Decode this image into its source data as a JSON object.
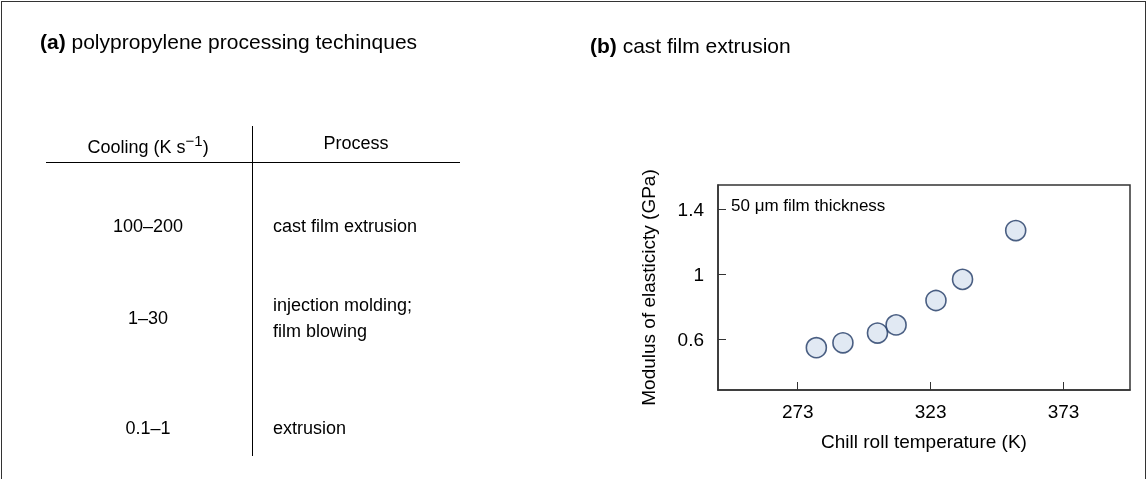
{
  "chart_data": [
    {
      "type": "other",
      "title": "(a) polypropylene processing techinques",
      "annotations": [
        "Cooling (K s$^{−1}$)",
        "Process",
        "100–200",
        "cast film extrusion",
        "1–30",
        "injection molding;\nfilm blowing",
        "0.1–1",
        "extrusion"
      ]
    },
    {
      "type": "scatter",
      "title": "(b) cast film extrusion",
      "xlabel": "Chill roll temperature (K)",
      "ylabel": "Modulus of elasticicty (GPa)",
      "annotations": [
        "50 μm film thickness"
      ],
      "x": [
        280,
        290,
        303,
        310,
        325,
        335,
        355
      ],
      "series": [
        {
          "color": "#dae3f0",
          "values": [
            0.55,
            0.58,
            0.64,
            0.69,
            0.84,
            0.97,
            1.27
          ]
        }
      ],
      "xlim": [
        243,
        398
      ],
      "xticks": [
        273,
        323,
        373
      ],
      "ylim": [
        0.29,
        1.55
      ],
      "yticks": [
        0.6,
        1,
        1.4
      ],
      "marker": "circle",
      "grid": false
    }
  ]
}
